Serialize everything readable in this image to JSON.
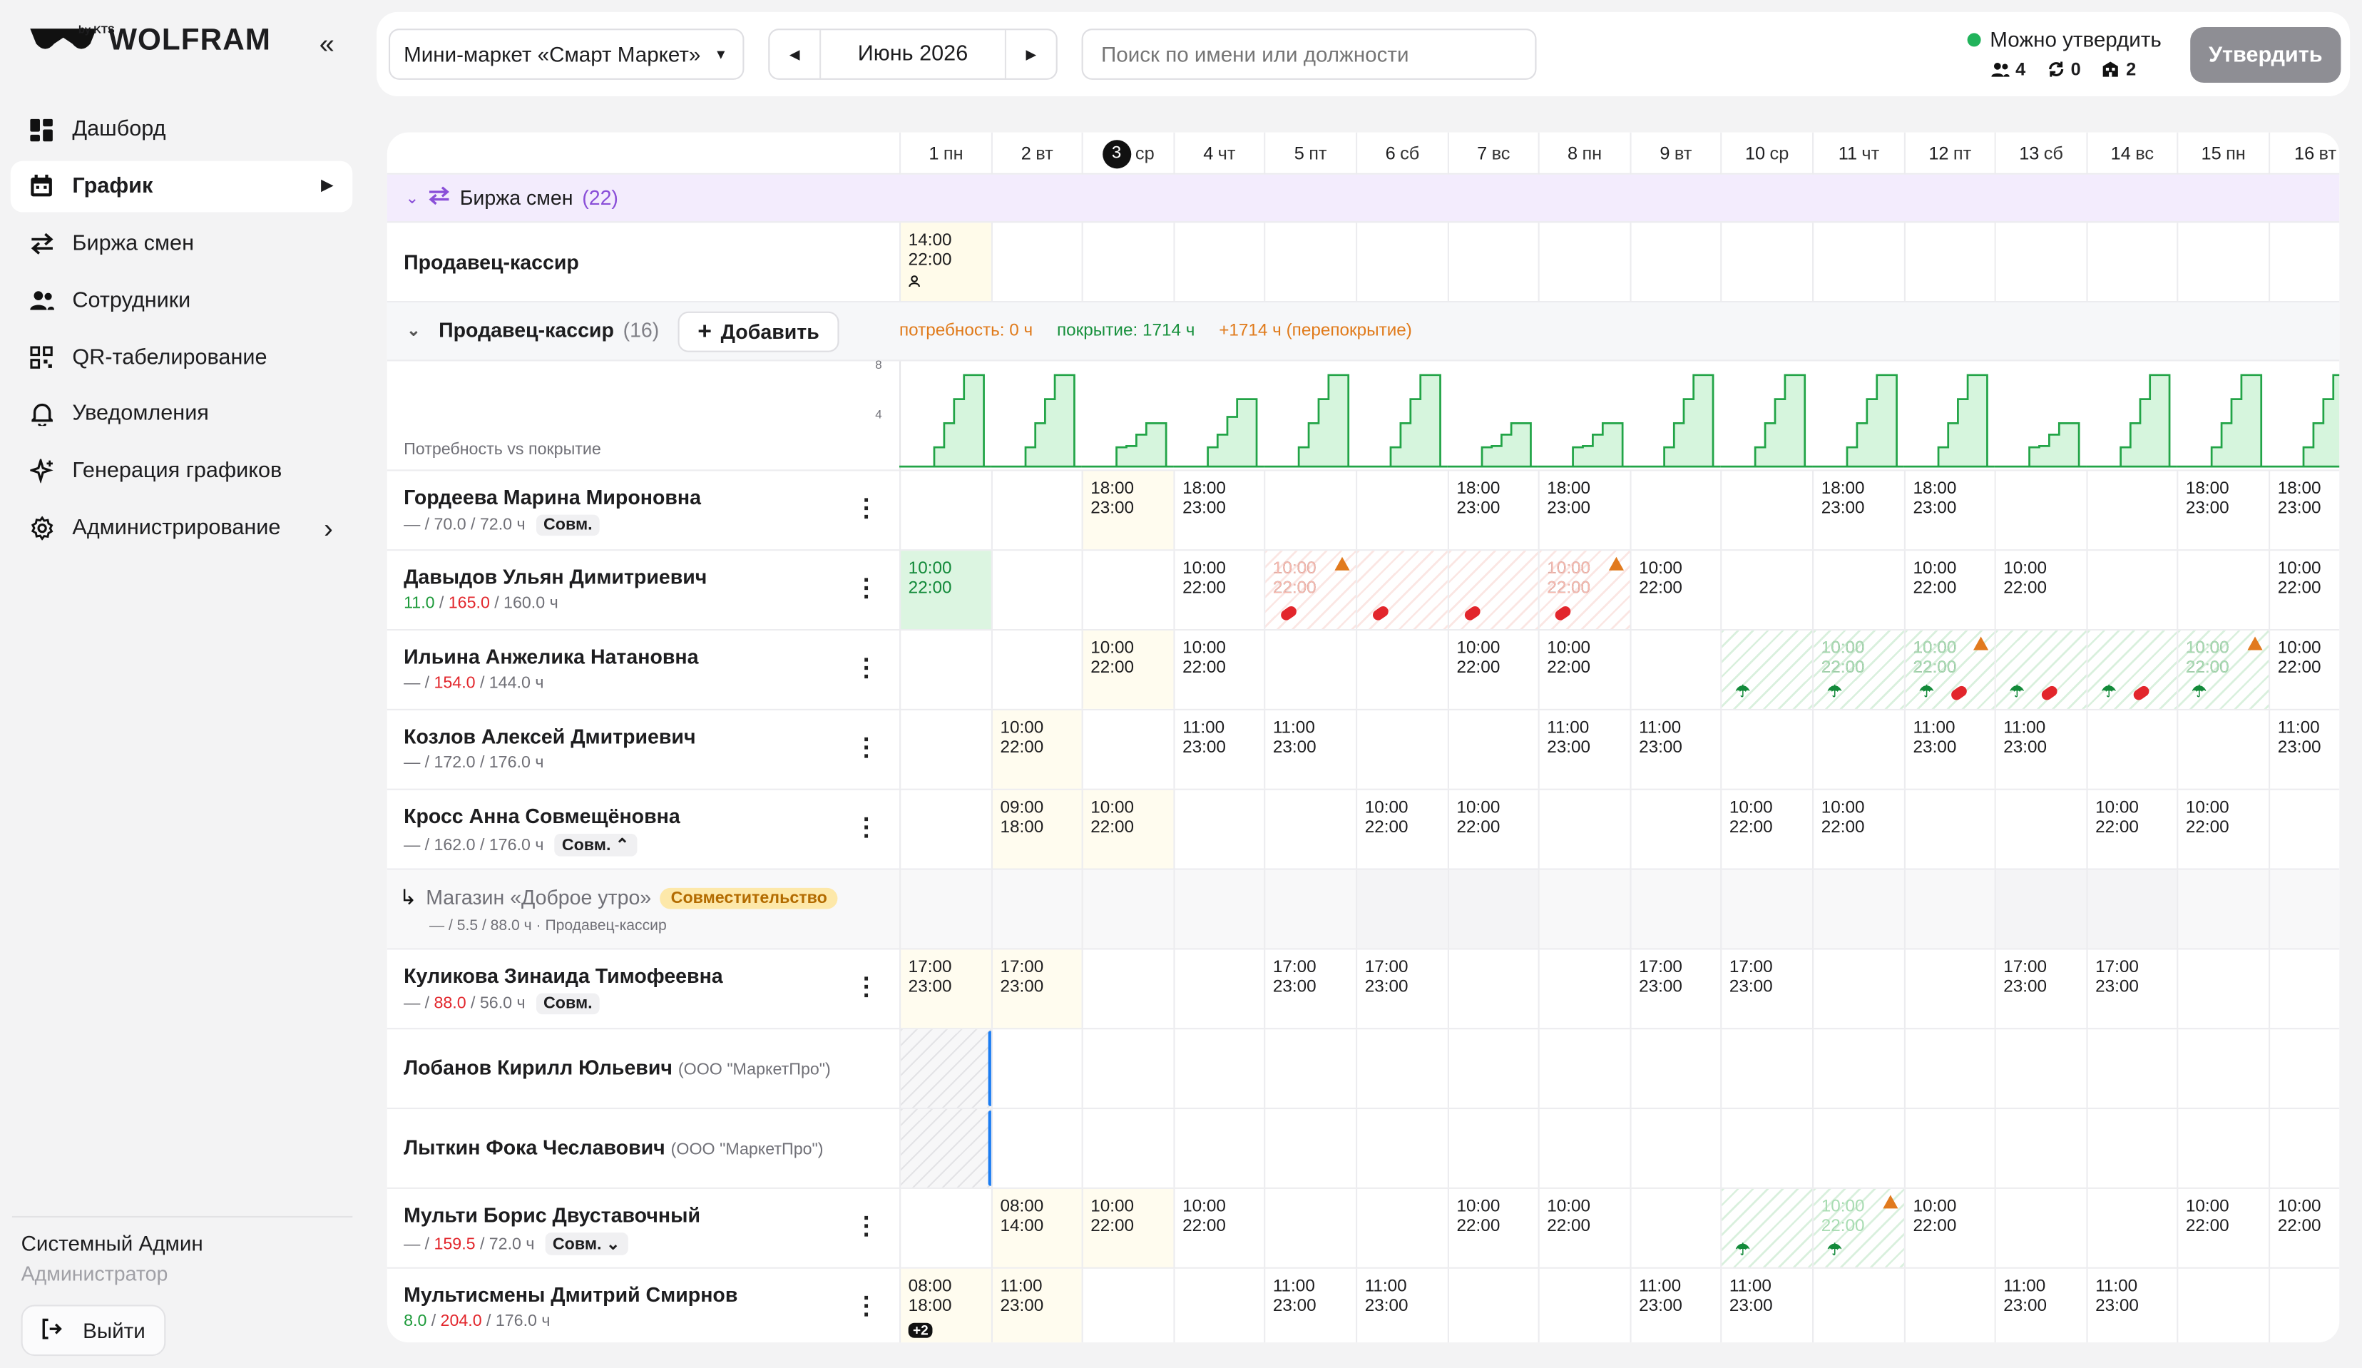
{
  "brand": {
    "name": "WOLFRAM",
    "sub": "by KTS"
  },
  "sidebar": {
    "collapse_icon": "double-chevron-left-icon",
    "items": [
      {
        "label": "Дашборд",
        "icon": "dashboard-icon"
      },
      {
        "label": "График",
        "icon": "calendar-icon",
        "active": true
      },
      {
        "label": "Биржа смен",
        "icon": "swap-icon"
      },
      {
        "label": "Сотрудники",
        "icon": "users-icon"
      },
      {
        "label": "QR-табелирование",
        "icon": "qr-icon"
      },
      {
        "label": "Уведомления",
        "icon": "bell-icon"
      },
      {
        "label": "Генерация графиков",
        "icon": "sparkle-icon"
      },
      {
        "label": "Администрирование",
        "icon": "gear-icon"
      }
    ],
    "user_name": "Системный Админ",
    "user_role": "Администратор",
    "logout_label": "Выйти"
  },
  "topbar": {
    "store": "Мини-маркет «Смарт Маркет»",
    "month": "Июнь 2026",
    "search_placeholder": "Поиск по имени или должности",
    "status": "Можно утвердить",
    "stat_people": "4",
    "stat_sync": "0",
    "stat_shops": "2",
    "approve_label": "Утвердить"
  },
  "days": [
    {
      "n": "1",
      "wd": "пн"
    },
    {
      "n": "2",
      "wd": "вт"
    },
    {
      "n": "3",
      "wd": "ср",
      "today": true
    },
    {
      "n": "4",
      "wd": "чт"
    },
    {
      "n": "5",
      "wd": "пт"
    },
    {
      "n": "6",
      "wd": "сб"
    },
    {
      "n": "7",
      "wd": "вс"
    },
    {
      "n": "8",
      "wd": "пн"
    },
    {
      "n": "9",
      "wd": "вт"
    },
    {
      "n": "10",
      "wd": "ср"
    },
    {
      "n": "11",
      "wd": "чт"
    },
    {
      "n": "12",
      "wd": "пт"
    },
    {
      "n": "13",
      "wd": "сб"
    },
    {
      "n": "14",
      "wd": "вс"
    },
    {
      "n": "15",
      "wd": "пн"
    },
    {
      "n": "16",
      "wd": "вт"
    }
  ],
  "exchange": {
    "title": "Биржа смен",
    "count": "(22)",
    "role": "Продавец-кассир",
    "shift": "14:00\n22:00"
  },
  "group": {
    "title": "Продавец-кассир",
    "count": "(16)",
    "add_label": "Добавить",
    "need": "потребность: 0 ч",
    "coverage": "покрытие: 1714 ч",
    "over": "+1714 ч (перепокрытие)",
    "chart_label": "Потребность vs покрытие",
    "y_ticks": [
      "8",
      "4"
    ]
  },
  "employees": [
    {
      "name": "Гордеева Марина Мироновна",
      "h1": "—",
      "h2": "70.0",
      "h3": "72.0 ч",
      "tag": "Совм.",
      "shifts": {
        "2": "18:00\n23:00",
        "3": "18:00\n23:00",
        "6": "18:00\n23:00",
        "7": "18:00\n23:00",
        "10": "18:00\n23:00",
        "11": "18:00\n23:00",
        "14": "18:00\n23:00",
        "15": "18:00\n23:00"
      }
    },
    {
      "name": "Давыдов Ульян Димитриевич",
      "h1": "11.0",
      "h2": "165.0",
      "h3": "160.0 ч",
      "tag": "",
      "shifts": {
        "0": "10:00\n22:00",
        "3": "10:00\n22:00",
        "4": "10:00\n22:00",
        "7": "10:00\n22:00",
        "8": "10:00\n22:00",
        "11": "10:00\n22:00",
        "12": "10:00\n22:00",
        "15": "10:00\n22:00"
      }
    },
    {
      "name": "Ильина Анжелика Натановна",
      "h1": "—",
      "h2": "154.0",
      "h3": "144.0 ч",
      "tag": "",
      "shifts": {
        "2": "10:00\n22:00",
        "3": "10:00\n22:00",
        "6": "10:00\n22:00",
        "7": "10:00\n22:00",
        "10": "10:00\n22:00",
        "11": "10:00\n22:00",
        "14": "10:00\n22:00",
        "15": "10:00\n22:00"
      }
    },
    {
      "name": "Козлов Алексей Дмитриевич",
      "h1": "—",
      "h2": "172.0",
      "h3": "176.0 ч",
      "tag": "",
      "shifts": {
        "1": "10:00\n22:00",
        "3": "11:00\n23:00",
        "4": "11:00\n23:00",
        "7": "11:00\n23:00",
        "8": "11:00\n23:00",
        "11": "11:00\n23:00",
        "12": "11:00\n23:00",
        "15": "11:00\n23:00"
      }
    },
    {
      "name": "Кросс Анна Совмещёновна",
      "h1": "—",
      "h2": "162.0",
      "h3": "176.0 ч",
      "tag": "Совм. ⌃",
      "shifts": {
        "1": "09:00\n18:00",
        "2": "10:00\n22:00",
        "5": "10:00\n22:00",
        "6": "10:00\n22:00",
        "9": "10:00\n22:00",
        "10": "10:00\n22:00",
        "13": "10:00\n22:00",
        "14": "10:00\n22:00"
      }
    },
    {
      "name": "Куликова Зинаида Тимофеевна",
      "h1": "—",
      "h2": "88.0",
      "h3": "56.0 ч",
      "tag": "Совм.",
      "shifts": {
        "0": "17:00\n23:00",
        "1": "17:00\n23:00",
        "4": "17:00\n23:00",
        "5": "17:00\n23:00",
        "8": "17:00\n23:00",
        "9": "17:00\n23:00",
        "12": "17:00\n23:00",
        "13": "17:00\n23:00"
      }
    }
  ],
  "side_store": {
    "name": "Магазин «Доброе утро»",
    "badge": "Совместительство",
    "hours": "— / 5.5 / 88.0 ч · Продавец-кассир"
  },
  "contractors": [
    {
      "name": "Лобанов Кирилл Юльевич",
      "org": "(ООО \"МаркетПро\")"
    },
    {
      "name": "Лыткин Фока Чеславович",
      "org": "(ООО \"МаркетПро\")"
    }
  ],
  "multi": [
    {
      "name": "Мульти Борис Двуставочный",
      "h1": "—",
      "h2": "159.5",
      "h3": "72.0 ч",
      "tag": "Совм. ⌄",
      "shifts": {
        "1": "08:00\n14:00",
        "2": "10:00\n22:00",
        "3": "10:00\n22:00",
        "6": "10:00\n22:00",
        "7": "10:00\n22:00",
        "11": "10:00\n22:00",
        "14": "10:00\n22:00",
        "15": "10:00\n22:00"
      }
    },
    {
      "name": "Мультисмены Дмитрий Смирнов",
      "h1": "8.0",
      "h2": "204.0",
      "h3": "176.0 ч",
      "tag": "",
      "shifts": {
        "0": "08:00\n18:00",
        "1": "11:00\n23:00",
        "4": "11:00\n23:00",
        "5": "11:00\n23:00",
        "8": "11:00\n23:00",
        "9": "11:00\n23:00",
        "12": "11:00\n23:00",
        "13": "11:00\n23:00"
      },
      "extra": "+2"
    }
  ],
  "faded_shift": "10:00\n22:00"
}
